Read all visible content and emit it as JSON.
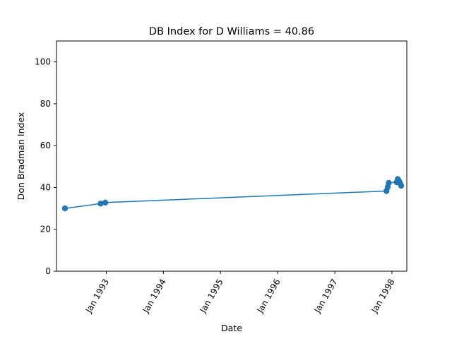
{
  "chart_data": {
    "type": "line",
    "title": "DB Index for D Williams = 40.86",
    "xlabel": "Date",
    "ylabel": "Don Bradman Index",
    "x_tick_labels": [
      "Jan 1993",
      "Jan 1994",
      "Jan 1995",
      "Jan 1996",
      "Jan 1997",
      "Jan 1998"
    ],
    "x_tick_dates": [
      "1993-01-01",
      "1994-01-01",
      "1995-01-01",
      "1996-01-01",
      "1997-01-01",
      "1998-01-01"
    ],
    "y_tick_labels": [
      "0",
      "20",
      "40",
      "60",
      "80",
      "100"
    ],
    "y_tick_values": [
      0,
      20,
      40,
      60,
      80,
      100
    ],
    "xlim": [
      "1992-02-18",
      "1998-04-06"
    ],
    "ylim": [
      0,
      110
    ],
    "grid": false,
    "colors": {
      "series": "#1f77b4",
      "axes": "#000000",
      "background": "#ffffff"
    },
    "series": [
      {
        "x": [
          "1992-04-12",
          "1992-11-26",
          "1992-12-26",
          "1997-11-27",
          "1997-12-05",
          "1997-12-12",
          "1998-01-31",
          "1998-02-07",
          "1998-02-14",
          "1998-02-22",
          "1998-03-01"
        ],
        "y": [
          30.0,
          32.3,
          32.8,
          38.3,
          40.2,
          42.2,
          42.5,
          44.0,
          43.3,
          42.0,
          40.86
        ]
      }
    ]
  }
}
